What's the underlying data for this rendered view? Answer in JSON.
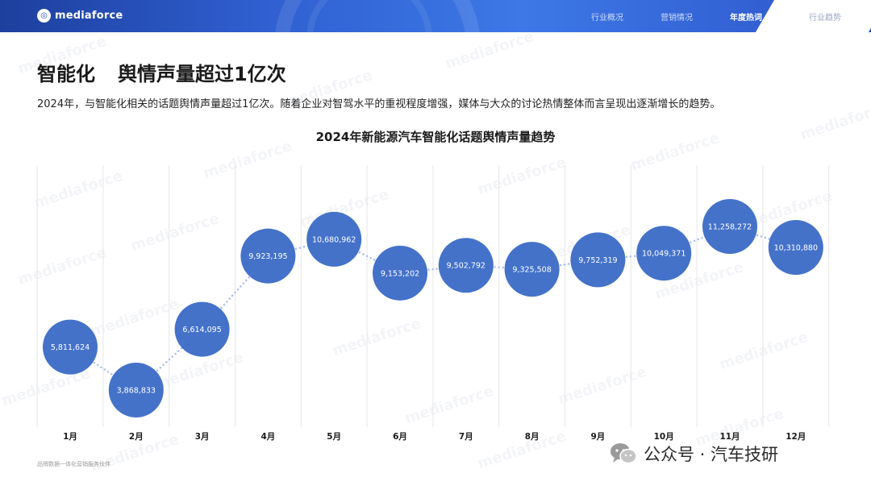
{
  "brand": {
    "logo_text": "mediaforce"
  },
  "nav": {
    "items": [
      "行业概况",
      "营销情况",
      "年度热词",
      "行业趋势"
    ],
    "active_index": 2
  },
  "page": {
    "title_part1": "智能化",
    "title_part2": "舆情声量超过1亿次",
    "intro": "2024年，与智能化相关的话题舆情声量超过1亿次。随着企业对智驾水平的重视程度增强，媒体与大众的讨论热情整体而言呈现出逐渐增长的趋势。"
  },
  "watermark_text": "mediaforce",
  "footer": {
    "note": "品牌数据一体化营销服务伙伴",
    "wechat_label": "公众号 · 汽车技研"
  },
  "colors": {
    "bubble": "#4472c9",
    "connector": "#a9bff0",
    "header": "#2f5fd0"
  },
  "chart_data": {
    "type": "line",
    "title": "2024年新能源汽车智能化话题舆情声量趋势",
    "categories": [
      "1月",
      "2月",
      "3月",
      "4月",
      "5月",
      "6月",
      "7月",
      "8月",
      "9月",
      "10月",
      "11月",
      "12月"
    ],
    "values": [
      5811624,
      3868833,
      6614095,
      9923195,
      10680962,
      9153202,
      9502792,
      9325508,
      9752319,
      10049371,
      11258272,
      10310880
    ],
    "value_labels": [
      "5,811,624",
      "3,868,833",
      "6,614,095",
      "9,923,195",
      "10,680,962",
      "9,153,202",
      "9,502,792",
      "9,325,508",
      "9,752,319",
      "10,049,371",
      "11,258,272",
      "10,310,880"
    ],
    "marker": "circle",
    "line_style": "dotted",
    "grid": "vertical"
  }
}
